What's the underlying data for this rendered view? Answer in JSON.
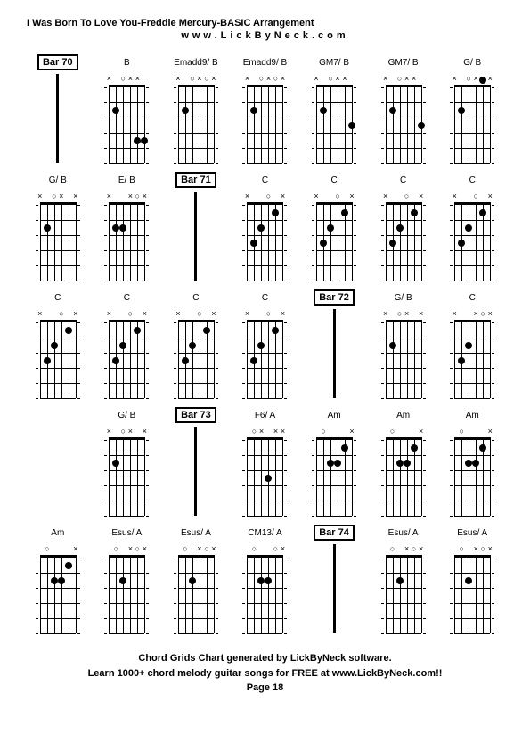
{
  "header_title": "I Was Born To Love You-Freddie Mercury-BASIC Arrangement",
  "website": "www.LickByNeck.com",
  "footer_line1": "Chord Grids Chart generated by LickByNeck software.",
  "footer_line2": "Learn 1000+ chord melody guitar songs for FREE at www.LickByNeck.com!!",
  "page_number": "Page 18",
  "colors": {
    "background": "#ffffff",
    "text": "#000000",
    "lines": "#000000"
  },
  "grid_cols": 7,
  "grid_rows": 5,
  "strings_count": 6,
  "frets_count": 5,
  "cells": [
    {
      "type": "bar",
      "label": "Bar 70"
    },
    {
      "type": "chord",
      "label": "B",
      "markers": [
        "x",
        "",
        "o",
        "x",
        "x",
        ""
      ],
      "dots": [
        {
          "s": 1,
          "f": 2
        },
        {
          "s": 4,
          "f": 4
        },
        {
          "s": 5,
          "f": 4
        }
      ],
      "opens": [
        {
          "s": 2,
          "f": 0
        }
      ]
    },
    {
      "type": "chord",
      "label": "Emadd9/ B",
      "markers": [
        "x",
        "",
        "o",
        "x",
        "o",
        "x"
      ],
      "dots": [
        {
          "s": 1,
          "f": 2
        }
      ],
      "opens": [
        {
          "s": 2,
          "f": 0
        },
        {
          "s": 4,
          "f": 0
        }
      ]
    },
    {
      "type": "chord",
      "label": "Emadd9/ B",
      "markers": [
        "x",
        "",
        "o",
        "x",
        "o",
        "x"
      ],
      "dots": [
        {
          "s": 1,
          "f": 2
        }
      ],
      "opens": [
        {
          "s": 2,
          "f": 0
        },
        {
          "s": 4,
          "f": 0
        }
      ]
    },
    {
      "type": "chord",
      "label": "GM7/ B",
      "markers": [
        "x",
        "",
        "o",
        "x",
        "x",
        ""
      ],
      "dots": [
        {
          "s": 1,
          "f": 2
        },
        {
          "s": 5,
          "f": 3
        }
      ],
      "opens": [
        {
          "s": 2,
          "f": 0
        }
      ]
    },
    {
      "type": "chord",
      "label": "GM7/ B",
      "markers": [
        "x",
        "",
        "o",
        "x",
        "x",
        ""
      ],
      "dots": [
        {
          "s": 1,
          "f": 2
        },
        {
          "s": 5,
          "f": 3
        }
      ],
      "opens": [
        {
          "s": 2,
          "f": 0
        }
      ]
    },
    {
      "type": "chord",
      "label": "G/ B",
      "markers": [
        "x",
        "",
        "o",
        "x",
        "",
        "x"
      ],
      "dots": [
        {
          "s": 1,
          "f": 2
        },
        {
          "s": 4,
          "f": 0
        }
      ],
      "opens": [
        {
          "s": 2,
          "f": 0
        },
        {
          "s": 4,
          "f": 0
        }
      ]
    },
    {
      "type": "chord",
      "label": "G/ B",
      "markers": [
        "x",
        "",
        "o",
        "x",
        "",
        "x"
      ],
      "dots": [
        {
          "s": 1,
          "f": 2
        }
      ],
      "opens": [
        {
          "s": 2,
          "f": 0
        },
        {
          "s": 4,
          "f": 0
        }
      ]
    },
    {
      "type": "chord",
      "label": "E/ B",
      "markers": [
        "x",
        "",
        "",
        "x",
        "o",
        "x"
      ],
      "dots": [
        {
          "s": 1,
          "f": 2
        },
        {
          "s": 2,
          "f": 2
        }
      ],
      "opens": [
        {
          "s": 4,
          "f": 0
        }
      ]
    },
    {
      "type": "bar",
      "label": "Bar 71"
    },
    {
      "type": "chord",
      "label": "C",
      "markers": [
        "x",
        "",
        "",
        "o",
        "",
        "x"
      ],
      "dots": [
        {
          "s": 1,
          "f": 3
        },
        {
          "s": 2,
          "f": 2
        },
        {
          "s": 4,
          "f": 1
        }
      ],
      "opens": [
        {
          "s": 3,
          "f": 0
        }
      ]
    },
    {
      "type": "chord",
      "label": "C",
      "markers": [
        "x",
        "",
        "",
        "o",
        "",
        "x"
      ],
      "dots": [
        {
          "s": 1,
          "f": 3
        },
        {
          "s": 2,
          "f": 2
        },
        {
          "s": 4,
          "f": 1
        }
      ],
      "opens": [
        {
          "s": 3,
          "f": 0
        }
      ]
    },
    {
      "type": "chord",
      "label": "C",
      "markers": [
        "x",
        "",
        "",
        "o",
        "",
        "x"
      ],
      "dots": [
        {
          "s": 1,
          "f": 3
        },
        {
          "s": 2,
          "f": 2
        },
        {
          "s": 4,
          "f": 1
        }
      ],
      "opens": [
        {
          "s": 3,
          "f": 0
        }
      ]
    },
    {
      "type": "chord",
      "label": "C",
      "markers": [
        "x",
        "",
        "",
        "o",
        "",
        "x"
      ],
      "dots": [
        {
          "s": 1,
          "f": 3
        },
        {
          "s": 2,
          "f": 2
        },
        {
          "s": 4,
          "f": 1
        }
      ],
      "opens": [
        {
          "s": 3,
          "f": 0
        }
      ]
    },
    {
      "type": "chord",
      "label": "C",
      "markers": [
        "x",
        "",
        "",
        "o",
        "",
        "x"
      ],
      "dots": [
        {
          "s": 1,
          "f": 3
        },
        {
          "s": 2,
          "f": 2
        },
        {
          "s": 4,
          "f": 1
        }
      ],
      "opens": [
        {
          "s": 3,
          "f": 0
        }
      ]
    },
    {
      "type": "chord",
      "label": "C",
      "markers": [
        "x",
        "",
        "",
        "o",
        "",
        "x"
      ],
      "dots": [
        {
          "s": 1,
          "f": 3
        },
        {
          "s": 2,
          "f": 2
        },
        {
          "s": 4,
          "f": 1
        }
      ],
      "opens": [
        {
          "s": 3,
          "f": 0
        }
      ]
    },
    {
      "type": "chord",
      "label": "C",
      "markers": [
        "x",
        "",
        "",
        "o",
        "",
        "x"
      ],
      "dots": [
        {
          "s": 1,
          "f": 3
        },
        {
          "s": 2,
          "f": 2
        },
        {
          "s": 4,
          "f": 1
        }
      ],
      "opens": [
        {
          "s": 3,
          "f": 0
        }
      ]
    },
    {
      "type": "chord",
      "label": "C",
      "markers": [
        "x",
        "",
        "",
        "o",
        "",
        "x"
      ],
      "dots": [
        {
          "s": 1,
          "f": 3
        },
        {
          "s": 2,
          "f": 2
        },
        {
          "s": 4,
          "f": 1
        }
      ],
      "opens": [
        {
          "s": 3,
          "f": 0
        }
      ]
    },
    {
      "type": "bar",
      "label": "Bar 72"
    },
    {
      "type": "chord",
      "label": "G/ B",
      "markers": [
        "x",
        "",
        "o",
        "x",
        "",
        "x"
      ],
      "dots": [
        {
          "s": 1,
          "f": 2
        }
      ],
      "opens": [
        {
          "s": 2,
          "f": 0
        },
        {
          "s": 4,
          "f": 0
        }
      ]
    },
    {
      "type": "chord",
      "label": "C",
      "markers": [
        "x",
        "",
        "",
        "x",
        "o",
        "x"
      ],
      "dots": [
        {
          "s": 1,
          "f": 3
        },
        {
          "s": 2,
          "f": 2
        }
      ],
      "opens": [
        {
          "s": 4,
          "f": 0
        }
      ]
    },
    {
      "type": "blank"
    },
    {
      "type": "chord",
      "label": "G/ B",
      "markers": [
        "x",
        "",
        "o",
        "x",
        "",
        "x"
      ],
      "dots": [
        {
          "s": 1,
          "f": 2
        }
      ],
      "opens": [
        {
          "s": 2,
          "f": 0
        },
        {
          "s": 4,
          "f": 0
        }
      ]
    },
    {
      "type": "bar",
      "label": "Bar 73"
    },
    {
      "type": "chord",
      "label": "F6/ A",
      "markers": [
        "",
        "o",
        "x",
        "",
        "x",
        "x"
      ],
      "dots": [
        {
          "s": 3,
          "f": 3
        }
      ],
      "opens": [
        {
          "s": 0,
          "f": 0
        },
        {
          "s": 1,
          "f": 0
        }
      ]
    },
    {
      "type": "chord",
      "label": "Am",
      "markers": [
        "",
        "o",
        "",
        "",
        "",
        "x"
      ],
      "dots": [
        {
          "s": 2,
          "f": 2
        },
        {
          "s": 3,
          "f": 2
        },
        {
          "s": 4,
          "f": 1
        }
      ],
      "opens": [
        {
          "s": 0,
          "f": 0
        },
        {
          "s": 1,
          "f": 0
        }
      ]
    },
    {
      "type": "chord",
      "label": "Am",
      "markers": [
        "",
        "o",
        "",
        "",
        "",
        "x"
      ],
      "dots": [
        {
          "s": 2,
          "f": 2
        },
        {
          "s": 3,
          "f": 2
        },
        {
          "s": 4,
          "f": 1
        }
      ],
      "opens": [
        {
          "s": 0,
          "f": 0
        },
        {
          "s": 1,
          "f": 0
        }
      ]
    },
    {
      "type": "chord",
      "label": "Am",
      "markers": [
        "",
        "o",
        "",
        "",
        "",
        "x"
      ],
      "dots": [
        {
          "s": 2,
          "f": 2
        },
        {
          "s": 3,
          "f": 2
        },
        {
          "s": 4,
          "f": 1
        }
      ],
      "opens": [
        {
          "s": 0,
          "f": 0
        },
        {
          "s": 1,
          "f": 0
        }
      ]
    },
    {
      "type": "chord",
      "label": "Am",
      "markers": [
        "",
        "o",
        "",
        "",
        "",
        "x"
      ],
      "dots": [
        {
          "s": 2,
          "f": 2
        },
        {
          "s": 3,
          "f": 2
        },
        {
          "s": 4,
          "f": 1
        }
      ],
      "opens": [
        {
          "s": 0,
          "f": 0
        },
        {
          "s": 1,
          "f": 0
        }
      ]
    },
    {
      "type": "chord",
      "label": "Esus/ A",
      "markers": [
        "",
        "o",
        "",
        "x",
        "o",
        "x"
      ],
      "dots": [
        {
          "s": 2,
          "f": 2
        }
      ],
      "opens": [
        {
          "s": 0,
          "f": 0
        },
        {
          "s": 1,
          "f": 0
        },
        {
          "s": 4,
          "f": 0
        }
      ]
    },
    {
      "type": "chord",
      "label": "Esus/ A",
      "markers": [
        "",
        "o",
        "",
        "x",
        "o",
        "x"
      ],
      "dots": [
        {
          "s": 2,
          "f": 2
        }
      ],
      "opens": [
        {
          "s": 0,
          "f": 0
        },
        {
          "s": 1,
          "f": 0
        },
        {
          "s": 4,
          "f": 0
        }
      ]
    },
    {
      "type": "chord",
      "label": "CM13/ A",
      "markers": [
        "",
        "o",
        "",
        "",
        "o",
        "x"
      ],
      "dots": [
        {
          "s": 2,
          "f": 2
        },
        {
          "s": 3,
          "f": 2
        }
      ],
      "opens": [
        {
          "s": 0,
          "f": 0
        },
        {
          "s": 1,
          "f": 0
        },
        {
          "s": 4,
          "f": 0
        }
      ]
    },
    {
      "type": "bar",
      "label": "Bar 74"
    },
    {
      "type": "chord",
      "label": "Esus/ A",
      "markers": [
        "",
        "o",
        "",
        "x",
        "o",
        "x"
      ],
      "dots": [
        {
          "s": 2,
          "f": 2
        }
      ],
      "opens": [
        {
          "s": 0,
          "f": 0
        },
        {
          "s": 1,
          "f": 0
        },
        {
          "s": 4,
          "f": 0
        }
      ]
    },
    {
      "type": "chord",
      "label": "Esus/ A",
      "markers": [
        "",
        "o",
        "",
        "x",
        "o",
        "x"
      ],
      "dots": [
        {
          "s": 2,
          "f": 2
        }
      ],
      "opens": [
        {
          "s": 0,
          "f": 0
        },
        {
          "s": 1,
          "f": 0
        },
        {
          "s": 4,
          "f": 0
        }
      ]
    }
  ]
}
